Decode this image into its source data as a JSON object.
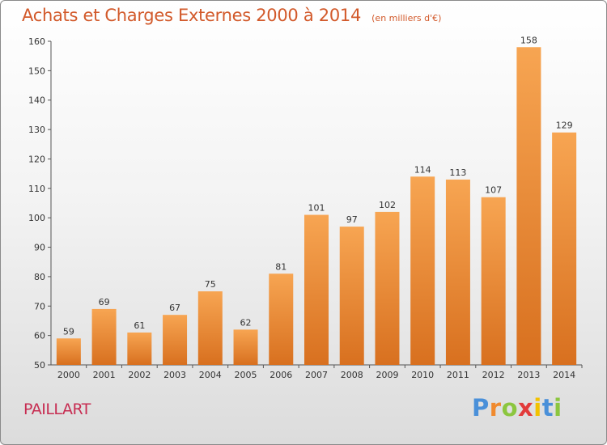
{
  "chart_data": {
    "type": "bar",
    "title": "Achats et Charges Externes 2000 à 2014",
    "unit": "(en milliers d'€)",
    "categories": [
      "2000",
      "2001",
      "2002",
      "2003",
      "2004",
      "2005",
      "2006",
      "2007",
      "2008",
      "2009",
      "2010",
      "2011",
      "2012",
      "2013",
      "2014"
    ],
    "values": [
      59,
      69,
      61,
      67,
      75,
      62,
      81,
      101,
      97,
      102,
      114,
      113,
      107,
      158,
      129
    ],
    "ylim": [
      50,
      160
    ],
    "yticks": [
      50,
      60,
      70,
      80,
      90,
      100,
      110,
      120,
      130,
      140,
      150,
      160
    ],
    "grid": false,
    "bar_color": "#f08a2e"
  },
  "commune": "PAILLART",
  "logo": {
    "letters": [
      "P",
      "r",
      "o",
      "x",
      "i",
      "t",
      "i"
    ],
    "colors": [
      "#4a90d9",
      "#f08a2e",
      "#8cc63f",
      "#e23b3b",
      "#f2c200",
      "#4a90d9",
      "#8cc63f"
    ]
  }
}
